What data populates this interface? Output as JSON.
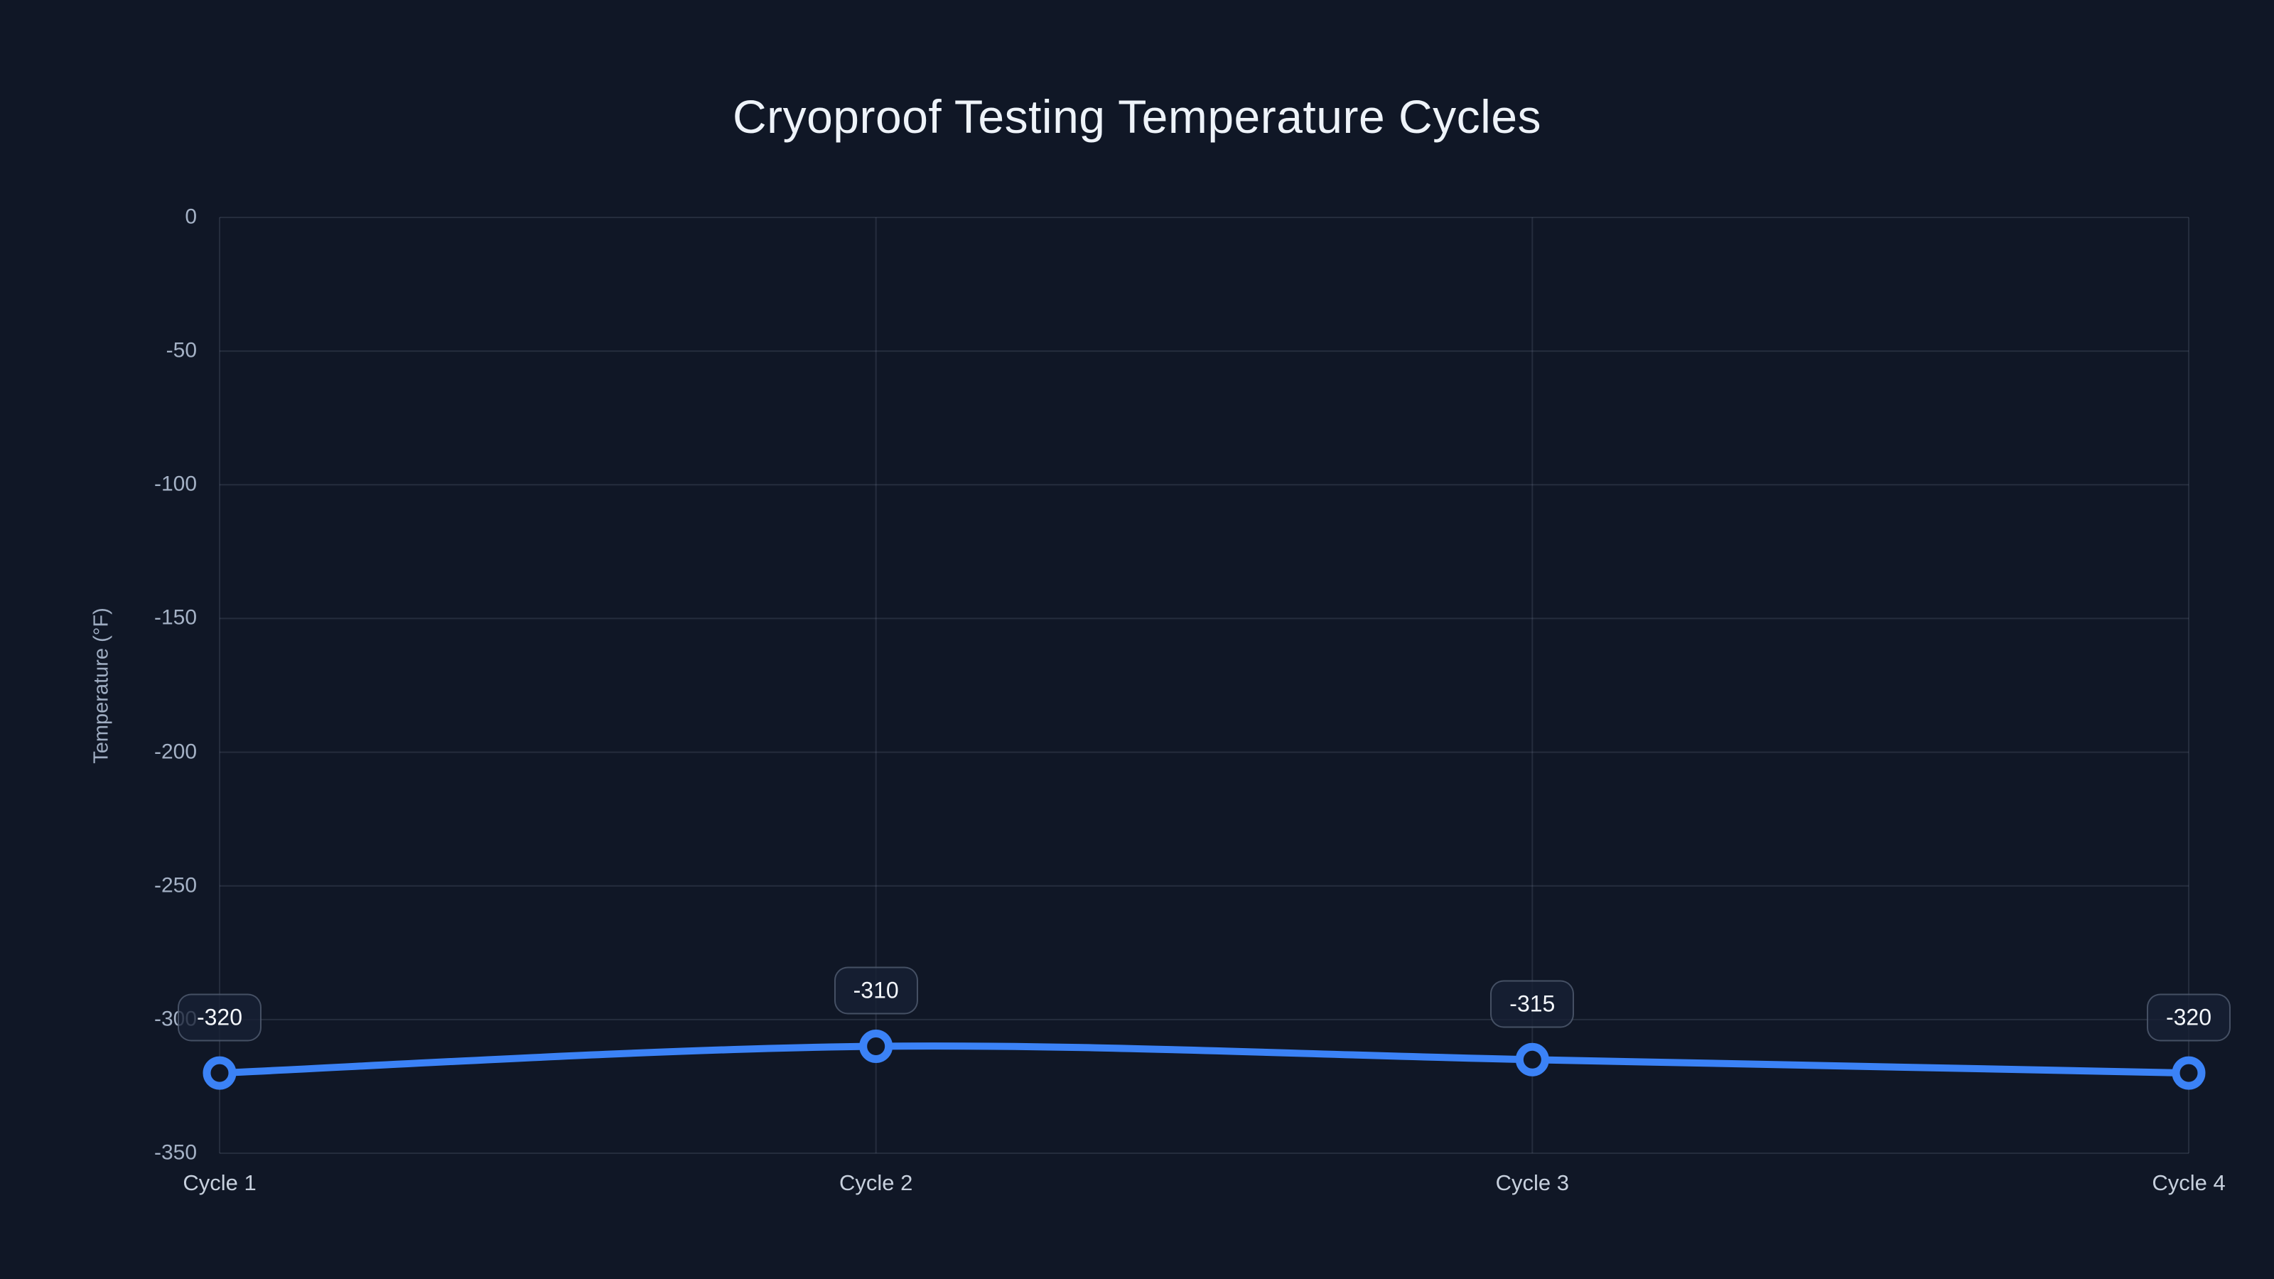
{
  "chart_data": {
    "type": "line",
    "title": "Cryoproof Testing Temperature Cycles",
    "categories": [
      "Cycle 1",
      "Cycle 2",
      "Cycle 3",
      "Cycle 4"
    ],
    "series": [
      {
        "values": [
          -320,
          -310,
          -315,
          -320
        ]
      }
    ],
    "point_labels": [
      "-320",
      "-310",
      "-315",
      "-320"
    ],
    "xlabel": "",
    "ylabel": "Temperature (°F)",
    "ylim": [
      -350,
      0
    ],
    "yticks": [
      0,
      -50,
      -100,
      -150,
      -200,
      -250,
      -300,
      -350
    ],
    "grid": true,
    "legend_position": "none",
    "marker_style": "open-circle",
    "line_smooth": true
  },
  "colors": {
    "background": "#101726",
    "line": "#3b82f6",
    "marker_fill": "#101726",
    "grid": "rgba(148,163,184,0.16)",
    "tick_text": "#a4b1c5",
    "category_text": "#c7d0dd",
    "title_text": "#eef3f9",
    "badge_text": "#f4f7fb"
  }
}
